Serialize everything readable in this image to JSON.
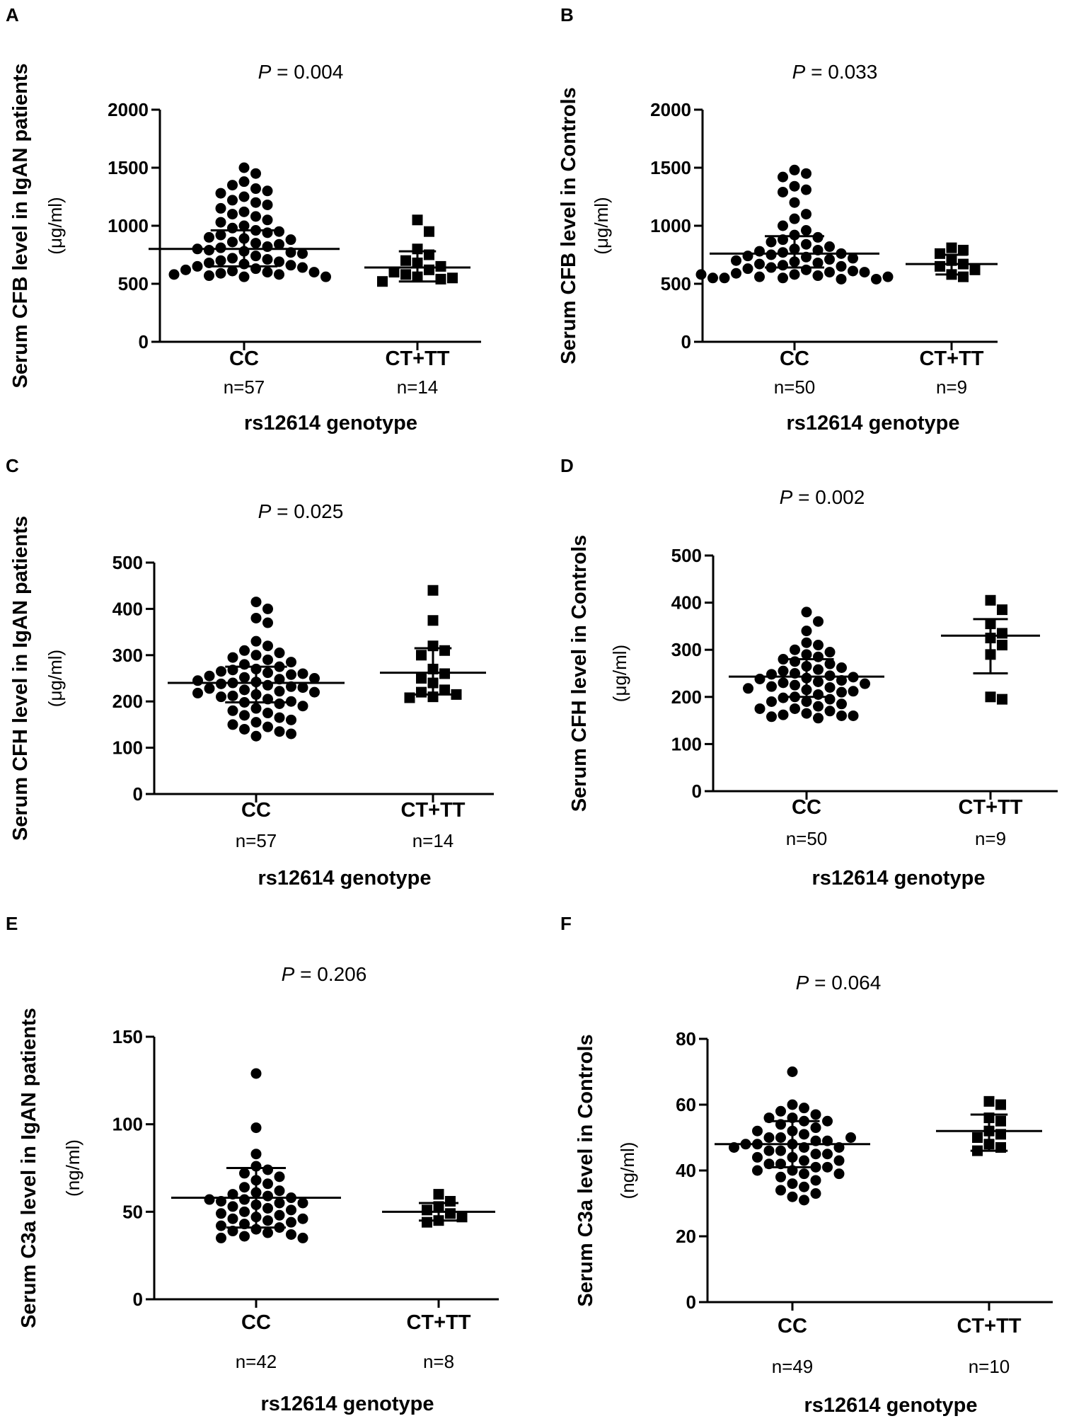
{
  "chart_data": [
    {
      "type": "scatter",
      "panel_label": "A",
      "p_symbol": "P",
      "p_text": " = 0.004",
      "ylabel": "Serum CFB level in IgAN patients",
      "yunit": "(μg/ml)",
      "xlabel": "rs12614 genotype",
      "ylim": [
        0,
        2000
      ],
      "yticks": [
        0,
        500,
        1000,
        1500,
        2000
      ],
      "categories": [
        "CC",
        "CT+TT"
      ],
      "n_labels": [
        "n=57",
        "n=14"
      ],
      "groups": [
        {
          "name": "CC",
          "n_label": "n=57",
          "marker": "circle",
          "mean": 800,
          "sd_low": 650,
          "sd_high": 960,
          "values": [
            1500,
            1450,
            1380,
            1350,
            1320,
            1300,
            1280,
            1250,
            1220,
            1200,
            1180,
            1150,
            1120,
            1100,
            1080,
            1050,
            1030,
            1000,
            980,
            960,
            950,
            940,
            920,
            900,
            890,
            880,
            860,
            850,
            840,
            820,
            810,
            800,
            790,
            780,
            770,
            760,
            740,
            720,
            710,
            700,
            690,
            680,
            670,
            660,
            650,
            640,
            630,
            620,
            610,
            600,
            600,
            590,
            580,
            580,
            570,
            560,
            560
          ]
        },
        {
          "name": "CT+TT",
          "n_label": "n=14",
          "marker": "square",
          "mean": 640,
          "sd_low": 520,
          "sd_high": 780,
          "values": [
            1050,
            950,
            800,
            750,
            700,
            680,
            650,
            620,
            600,
            580,
            560,
            550,
            540,
            520
          ]
        }
      ]
    },
    {
      "type": "scatter",
      "panel_label": "B",
      "p_symbol": "P",
      "p_text": " = 0.033",
      "ylabel": "Serum CFB level in Controls",
      "yunit": "(μg/ml)",
      "xlabel": "rs12614 genotype",
      "ylim": [
        0,
        2000
      ],
      "yticks": [
        0,
        500,
        1000,
        1500,
        2000
      ],
      "categories": [
        "CC",
        "CT+TT"
      ],
      "n_labels": [
        "n=50",
        "n=9"
      ],
      "groups": [
        {
          "name": "CC",
          "n_label": "n=50",
          "marker": "circle",
          "mean": 760,
          "sd_low": 640,
          "sd_high": 910,
          "values": [
            1480,
            1450,
            1420,
            1340,
            1310,
            1290,
            1200,
            1100,
            1060,
            1000,
            960,
            920,
            900,
            880,
            860,
            840,
            820,
            800,
            790,
            780,
            770,
            760,
            750,
            740,
            730,
            720,
            710,
            700,
            690,
            680,
            670,
            660,
            650,
            640,
            630,
            620,
            610,
            600,
            600,
            590,
            580,
            570,
            560,
            550,
            550,
            540,
            540,
            550,
            560,
            580
          ]
        },
        {
          "name": "CT+TT",
          "n_label": "n=9",
          "marker": "square",
          "mean": 670,
          "sd_low": 580,
          "sd_high": 750,
          "values": [
            810,
            790,
            760,
            700,
            670,
            650,
            620,
            580,
            560
          ]
        }
      ]
    },
    {
      "type": "scatter",
      "panel_label": "C",
      "p_symbol": "P",
      "p_text": " = 0.025",
      "ylabel": "Serum CFH level in IgAN patients",
      "yunit": "(μg/ml)",
      "xlabel": "rs12614 genotype",
      "ylim": [
        0,
        500
      ],
      "yticks": [
        0,
        100,
        200,
        300,
        400,
        500
      ],
      "categories": [
        "CC",
        "CT+TT"
      ],
      "n_labels": [
        "n=57",
        "n=14"
      ],
      "groups": [
        {
          "name": "CC",
          "n_label": "n=57",
          "marker": "circle",
          "mean": 240,
          "sd_low": 198,
          "sd_high": 275,
          "values": [
            415,
            400,
            380,
            370,
            330,
            320,
            310,
            305,
            300,
            295,
            290,
            285,
            280,
            275,
            270,
            268,
            265,
            262,
            260,
            258,
            255,
            252,
            250,
            248,
            245,
            242,
            240,
            238,
            235,
            232,
            230,
            228,
            225,
            222,
            220,
            218,
            215,
            212,
            210,
            205,
            200,
            198,
            195,
            190,
            185,
            180,
            175,
            170,
            165,
            160,
            155,
            150,
            145,
            140,
            135,
            130,
            125
          ]
        },
        {
          "name": "CT+TT",
          "n_label": "n=14",
          "marker": "square",
          "mean": 262,
          "sd_low": 215,
          "sd_high": 315,
          "values": [
            440,
            375,
            320,
            310,
            300,
            270,
            260,
            250,
            240,
            225,
            220,
            215,
            210,
            208
          ]
        }
      ]
    },
    {
      "type": "scatter",
      "panel_label": "D",
      "p_symbol": "P",
      "p_text": " = 0.002",
      "ylabel": "Serum CFH level in Controls",
      "yunit": "(μg/ml)",
      "xlabel": "rs12614 genotype",
      "ylim": [
        0,
        500
      ],
      "yticks": [
        0,
        100,
        200,
        300,
        400,
        500
      ],
      "categories": [
        "CC",
        "CT+TT"
      ],
      "n_labels": [
        "n=50",
        "n=9"
      ],
      "groups": [
        {
          "name": "CC",
          "n_label": "n=50",
          "marker": "circle",
          "mean": 243,
          "sd_low": 200,
          "sd_high": 280,
          "values": [
            380,
            360,
            340,
            315,
            310,
            300,
            295,
            290,
            285,
            280,
            275,
            270,
            265,
            262,
            258,
            255,
            250,
            248,
            245,
            242,
            240,
            238,
            235,
            232,
            230,
            228,
            225,
            222,
            220,
            218,
            215,
            212,
            210,
            205,
            200,
            198,
            195,
            190,
            185,
            180,
            175,
            170,
            165,
            162,
            160,
            158,
            155,
            160,
            175,
            190
          ]
        },
        {
          "name": "CT+TT",
          "n_label": "n=9",
          "marker": "square",
          "mean": 330,
          "sd_low": 250,
          "sd_high": 365,
          "values": [
            405,
            385,
            355,
            335,
            325,
            310,
            290,
            200,
            195
          ]
        }
      ]
    },
    {
      "type": "scatter",
      "panel_label": "E",
      "p_symbol": "P",
      "p_text": " = 0.206",
      "ylabel": "Serum C3a level in IgAN patients",
      "yunit": "(ng/ml)",
      "xlabel": "rs12614 genotype",
      "ylim": [
        0,
        150
      ],
      "yticks": [
        0,
        50,
        100,
        150
      ],
      "categories": [
        "CC",
        "CT+TT"
      ],
      "n_labels": [
        "n=42",
        "n=8"
      ],
      "groups": [
        {
          "name": "CC",
          "n_label": "n=42",
          "marker": "circle",
          "mean": 58,
          "sd_low": 41,
          "sd_high": 75,
          "values": [
            129,
            98,
            83,
            76,
            74,
            72,
            70,
            68,
            66,
            64,
            62,
            61,
            60,
            59,
            58,
            57,
            56,
            55,
            54,
            53,
            52,
            51,
            50,
            49,
            48,
            47,
            46,
            46,
            45,
            44,
            43,
            42,
            41,
            40,
            39,
            38,
            37,
            36,
            35,
            35,
            55,
            57
          ]
        },
        {
          "name": "CT+TT",
          "n_label": "n=8",
          "marker": "square",
          "mean": 50,
          "sd_low": 45,
          "sd_high": 55,
          "values": [
            60,
            56,
            53,
            51,
            49,
            47,
            45,
            44
          ]
        }
      ]
    },
    {
      "type": "scatter",
      "panel_label": "F",
      "p_symbol": "P",
      "p_text": " = 0.064",
      "ylabel": "Serum C3a level in Controls",
      "yunit": "(ng/ml)",
      "xlabel": "rs12614 genotype",
      "ylim": [
        0,
        80
      ],
      "yticks": [
        0,
        20,
        40,
        60,
        80
      ],
      "categories": [
        "CC",
        "CT+TT"
      ],
      "n_labels": [
        "n=49",
        "n=10"
      ],
      "groups": [
        {
          "name": "CC",
          "n_label": "n=49",
          "marker": "circle",
          "mean": 48,
          "sd_low": 41,
          "sd_high": 55,
          "values": [
            70,
            60,
            59,
            58,
            57,
            56,
            56,
            55,
            55,
            54,
            53,
            52,
            51,
            50,
            50,
            49,
            49,
            48,
            48,
            47,
            47,
            46,
            46,
            45,
            45,
            44,
            44,
            43,
            43,
            42,
            42,
            41,
            41,
            40,
            40,
            39,
            39,
            38,
            37,
            36,
            35,
            34,
            33,
            32,
            31,
            48,
            50,
            52,
            47
          ]
        },
        {
          "name": "CT+TT",
          "n_label": "n=10",
          "marker": "square",
          "mean": 52,
          "sd_low": 46,
          "sd_high": 57,
          "values": [
            61,
            60,
            56,
            55,
            52,
            51,
            50,
            48,
            47,
            46
          ]
        }
      ]
    }
  ]
}
